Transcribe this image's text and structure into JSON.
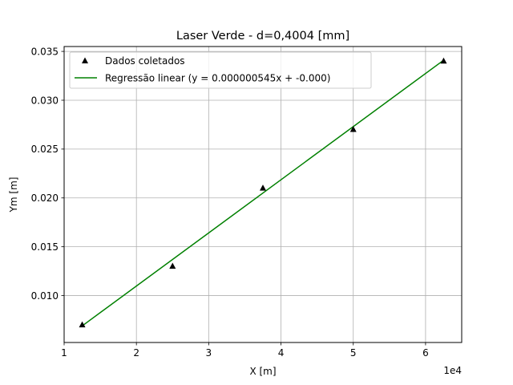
{
  "chart_data": {
    "type": "scatter",
    "title": "Laser Verde - d=0,4004 [mm]",
    "xlabel": "X [m]",
    "ylabel": "Ym [m]",
    "x_offset_label": "1e4",
    "xlim": [
      10000,
      65000
    ],
    "ylim": [
      0.0052,
      0.0355
    ],
    "grid": true,
    "legend_position": "top-left",
    "x_ticks": [
      10000,
      20000,
      30000,
      40000,
      50000,
      60000
    ],
    "x_tick_labels": [
      "1",
      "2",
      "3",
      "4",
      "5",
      "6"
    ],
    "y_ticks": [
      0.01,
      0.015,
      0.02,
      0.025,
      0.03,
      0.035
    ],
    "y_tick_labels": [
      "0.010",
      "0.015",
      "0.020",
      "0.025",
      "0.030",
      "0.035"
    ],
    "series": [
      {
        "name": "Dados coletados",
        "kind": "markers",
        "marker": "triangle",
        "color": "#000000",
        "x": [
          12500,
          25000,
          37500,
          50000,
          62500
        ],
        "y": [
          0.007,
          0.013,
          0.021,
          0.027,
          0.034
        ]
      },
      {
        "name": "Regressão linear (y = 0.000000545x + -0.000)",
        "kind": "line",
        "color": "#008000",
        "x": [
          12500,
          62500
        ],
        "y": [
          0.0069,
          0.0341
        ]
      }
    ]
  }
}
